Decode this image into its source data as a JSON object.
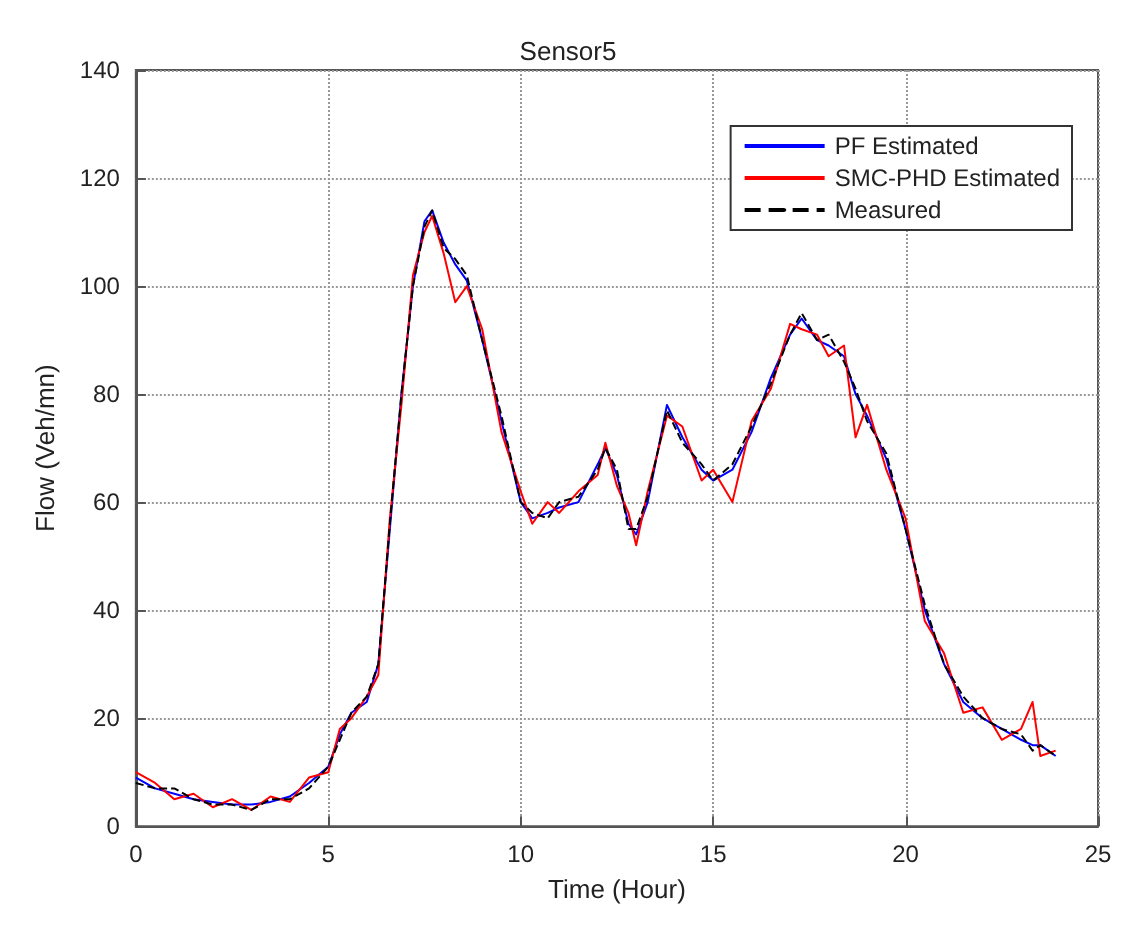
{
  "chart_data": {
    "type": "line",
    "title": "Sensor5",
    "xlabel": "Time (Hour)",
    "ylabel": "Flow (Veh/mn)",
    "x": [
      0,
      0.5,
      1,
      1.5,
      2,
      2.5,
      3,
      3.5,
      4,
      4.5,
      5,
      5.3,
      5.6,
      6,
      6.3,
      6.6,
      6.9,
      7.2,
      7.5,
      7.7,
      8,
      8.3,
      8.6,
      9,
      9.5,
      10,
      10.3,
      10.7,
      11,
      11.5,
      12,
      12.2,
      12.5,
      12.8,
      13,
      13.3,
      13.8,
      14.2,
      14.7,
      15,
      15.5,
      16,
      16.5,
      17,
      17.3,
      17.7,
      18,
      18.4,
      18.7,
      19,
      19.5,
      20,
      20.5,
      21,
      21.5,
      22,
      22.5,
      23,
      23.3,
      23.5,
      23.9
    ],
    "series": [
      {
        "name": "PF Estimated",
        "color": "#0000ff",
        "line_style": "solid",
        "values": [
          9,
          7,
          6,
          5,
          4.5,
          4,
          4,
          4.5,
          5.5,
          8,
          11,
          17,
          21,
          23,
          30,
          55,
          80,
          100,
          112,
          114,
          108,
          104,
          101,
          90,
          75,
          60,
          57,
          58,
          59,
          60,
          67,
          70,
          65,
          56,
          54,
          60,
          78,
          72,
          66,
          64,
          66,
          73,
          83,
          91,
          94,
          90,
          89,
          87,
          80,
          76,
          68,
          55,
          40,
          30,
          23,
          20,
          18,
          16,
          15,
          15,
          13
        ]
      },
      {
        "name": "SMC-PHD Estimated",
        "color": "#ff0000",
        "line_style": "solid",
        "values": [
          10,
          8,
          5,
          6,
          3.5,
          5,
          3,
          5.5,
          4.5,
          9,
          10,
          18,
          20,
          24,
          28,
          57,
          78,
          102,
          110,
          113,
          106,
          97,
          100,
          92,
          73,
          62,
          56,
          60,
          58,
          62,
          65,
          71,
          63,
          58,
          52,
          62,
          76,
          74,
          64,
          66,
          60,
          75,
          81,
          93,
          92,
          91,
          87,
          89,
          72,
          78,
          66,
          57,
          38,
          32,
          21,
          22,
          16,
          18,
          23,
          13,
          14
        ]
      },
      {
        "name": "Measured",
        "color": "#000000",
        "line_style": "dashed",
        "values": [
          8,
          7,
          7,
          5,
          4,
          4,
          3,
          5,
          5,
          7,
          11,
          16,
          21,
          24,
          30,
          56,
          80,
          100,
          111,
          114,
          107,
          105,
          102,
          90,
          76,
          60,
          58,
          57,
          60,
          61,
          66,
          70,
          66,
          55,
          55,
          61,
          77,
          71,
          67,
          64,
          67,
          74,
          82,
          91,
          95,
          90,
          91,
          86,
          81,
          75,
          69,
          55,
          41,
          30,
          24,
          20,
          18,
          17,
          14,
          15,
          13
        ]
      }
    ],
    "xlim": [
      0,
      25
    ],
    "xticks": [
      0,
      5,
      10,
      15,
      20,
      25
    ],
    "ylim": [
      0,
      140
    ],
    "yticks": [
      0,
      20,
      40,
      60,
      80,
      100,
      120,
      140
    ],
    "grid": true,
    "legend": "top right",
    "marker": "none"
  }
}
